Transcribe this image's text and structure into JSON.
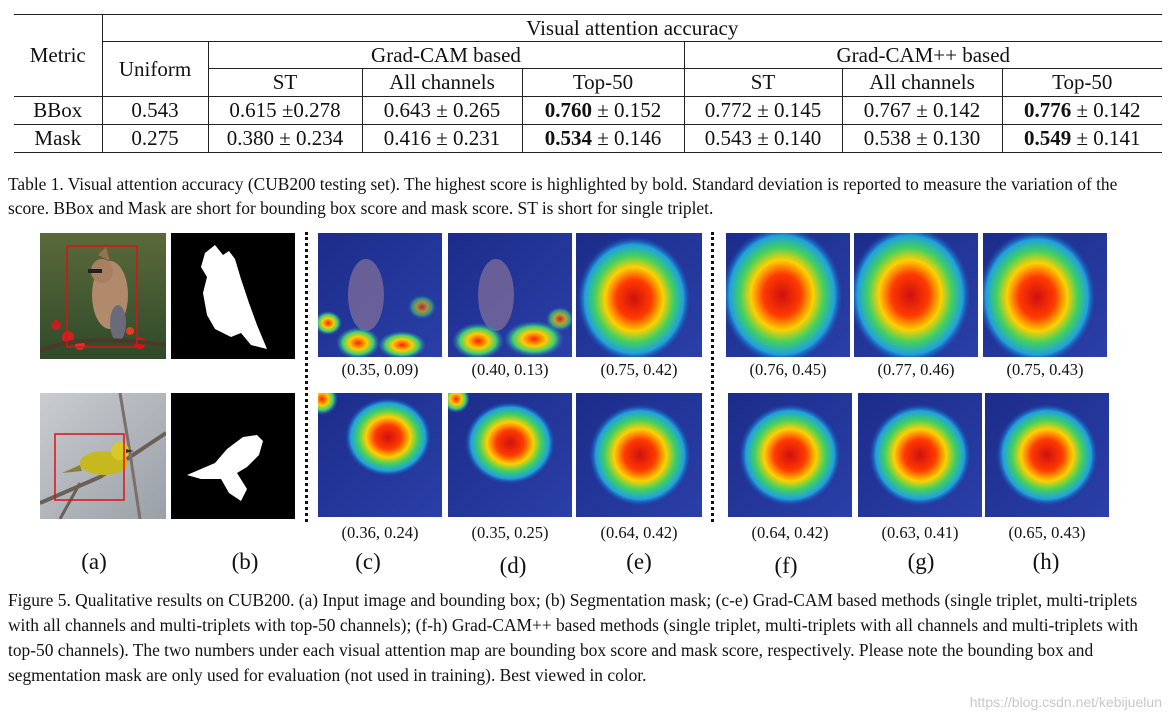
{
  "table": {
    "header_metric": "Metric",
    "header_group": "Visual attention accuracy",
    "header_uniform": "Uniform",
    "header_gradcam": "Grad-CAM based",
    "header_gradcampp": "Grad-CAM++ based",
    "sub_headers": [
      "ST",
      "All channels",
      "Top-50",
      "ST",
      "All channels",
      "Top-50"
    ],
    "rows": [
      {
        "metric": "BBox",
        "uniform": "0.543",
        "cells": [
          {
            "mean": "0.615",
            "sep": " ±",
            "std": "0.278",
            "bold": false
          },
          {
            "mean": "0.643",
            "sep": " ± ",
            "std": "0.265",
            "bold": false
          },
          {
            "mean": "0.760",
            "sep": " ± ",
            "std": "0.152",
            "bold": true
          },
          {
            "mean": "0.772",
            "sep": " ± ",
            "std": "0.145",
            "bold": false
          },
          {
            "mean": "0.767",
            "sep": " ± ",
            "std": "0.142",
            "bold": false
          },
          {
            "mean": "0.776",
            "sep": " ± ",
            "std": "0.142",
            "bold": true
          }
        ]
      },
      {
        "metric": "Mask",
        "uniform": "0.275",
        "cells": [
          {
            "mean": "0.380",
            "sep": " ± ",
            "std": "0.234",
            "bold": false
          },
          {
            "mean": "0.416",
            "sep": " ± ",
            "std": "0.231",
            "bold": false
          },
          {
            "mean": "0.534",
            "sep": " ± ",
            "std": "0.146",
            "bold": true
          },
          {
            "mean": "0.543",
            "sep": " ± ",
            "std": "0.140",
            "bold": false
          },
          {
            "mean": "0.538",
            "sep": " ± ",
            "std": "0.130",
            "bold": false
          },
          {
            "mean": "0.549",
            "sep": " ± ",
            "std": "0.141",
            "bold": true
          }
        ]
      }
    ]
  },
  "table_caption": "Table 1. Visual attention accuracy (CUB200 testing set). The highest score is highlighted by bold. Standard deviation is reported to measure the variation of the score. BBox and Mask are short for bounding box score and mask score. ST is short for single triplet.",
  "figure": {
    "row1_scores": [
      "(0.35, 0.09)",
      "(0.40, 0.13)",
      "(0.75, 0.42)",
      "(0.76, 0.45)",
      "(0.77, 0.46)",
      "(0.75, 0.43)"
    ],
    "row2_scores": [
      "(0.36, 0.24)",
      "(0.35, 0.25)",
      "(0.64, 0.42)",
      "(0.64, 0.42)",
      "(0.63, 0.41)",
      "(0.65, 0.43)"
    ],
    "panel_labels": [
      "(a)",
      "(b)",
      "(c)",
      "(d)",
      "(e)",
      "(f)",
      "(g)",
      "(h)"
    ],
    "colors": {
      "bbox": "#e01010",
      "heat_hot": "#ff2000",
      "heat_cold": "#1a2a9a"
    }
  },
  "figure_caption": "Figure 5. Qualitative results on CUB200.  (a) Input image and bounding box; (b) Segmentation mask; (c-e) Grad-CAM based methods (single triplet, multi-triplets with all channels and multi-triplets with top-50 channels); (f-h) Grad-CAM++ based methods (single triplet, multi-triplets with all channels and multi-triplets with top-50 channels).  The two numbers under each visual attention map are bounding box score and mask score, respectively.  Please note the bounding box and segmentation mask are only used for evaluation (not used in training). Best viewed in color.",
  "watermark": "https://blog.csdn.net/kebijuelun"
}
